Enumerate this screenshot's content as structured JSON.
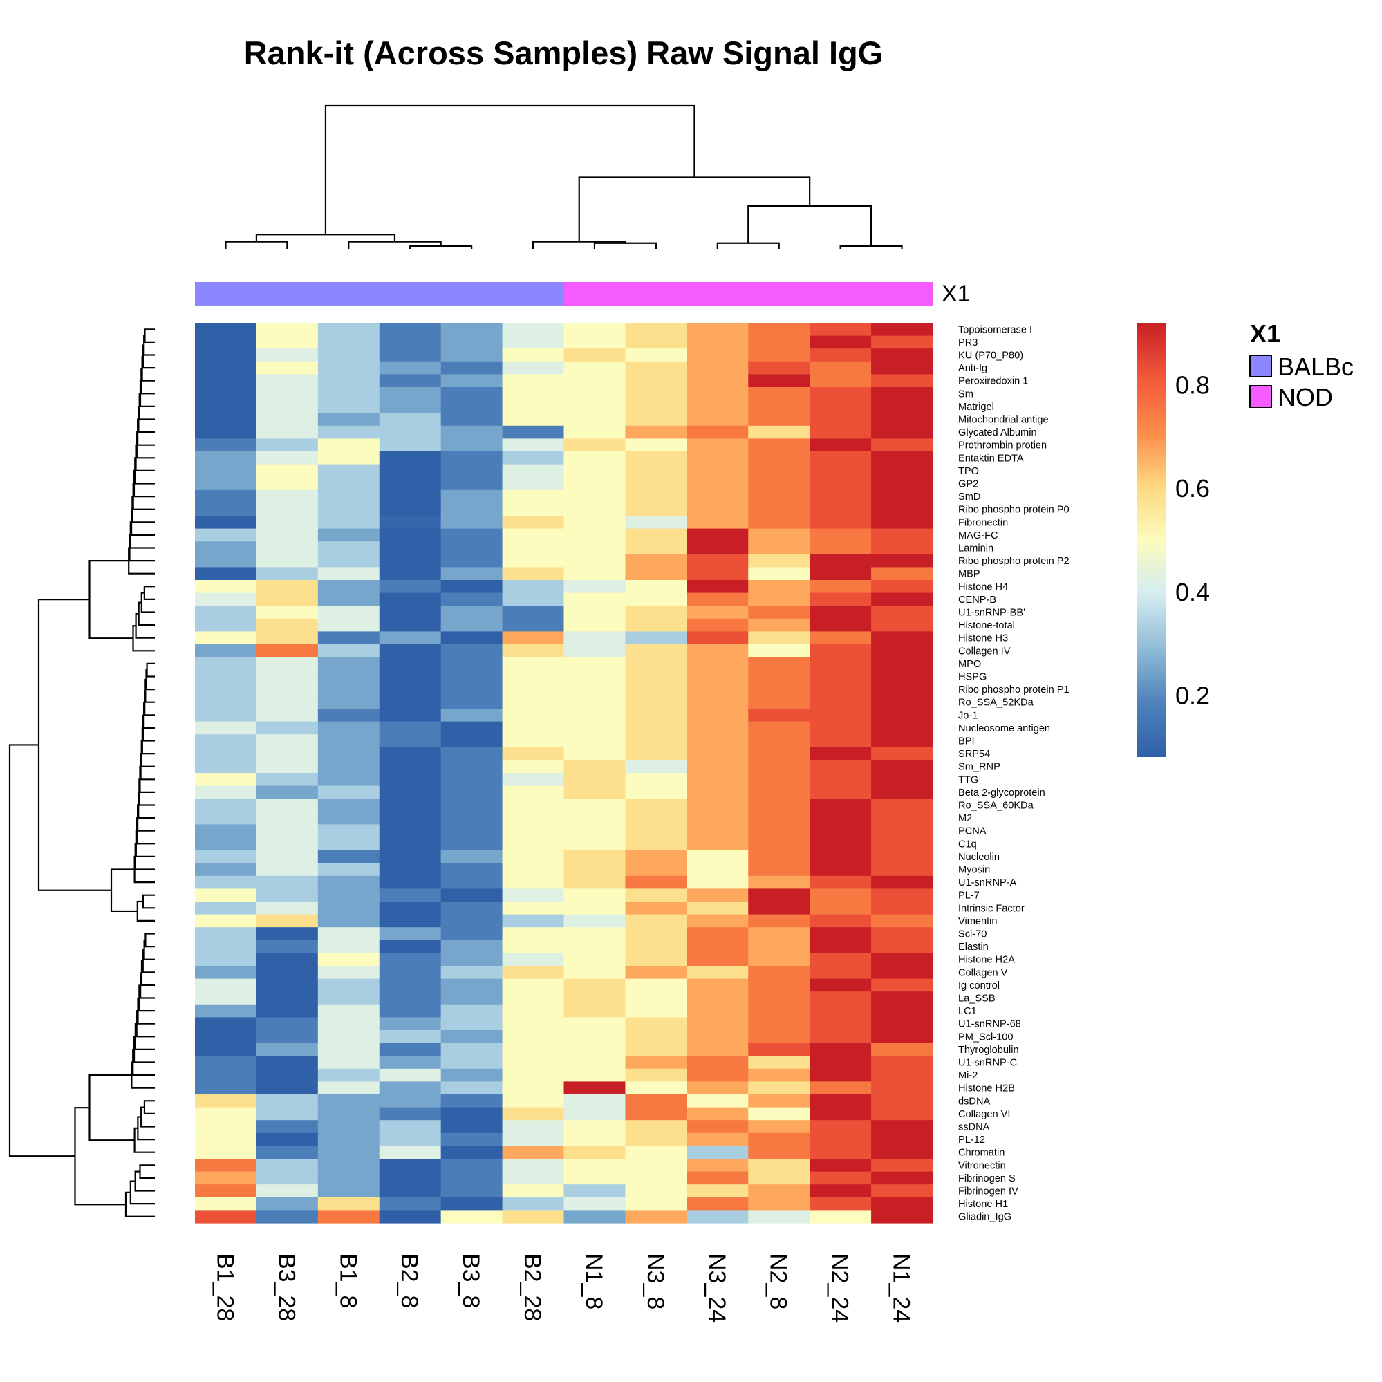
{
  "chart_data": {
    "type": "heatmap",
    "title": "Rank-it (Across Samples) Raw Signal IgG",
    "columns": [
      "B1_28",
      "B3_28",
      "B1_8",
      "B2_8",
      "B3_8",
      "B2_28",
      "N1_8",
      "N3_8",
      "N3_24",
      "N2_8",
      "N2_24",
      "N1_24"
    ],
    "rows": [
      "Topoisomerase I",
      "PR3",
      "KU (P70_P80)",
      "Anti-Ig",
      "Peroxiredoxin 1",
      "Sm",
      "Matrigel",
      "Mitochondrial antige",
      "Glycated Albumin",
      "Prothrombin protien",
      "Entaktin EDTA",
      "TPO",
      "GP2",
      "SmD",
      "Ribo phospho protein P0",
      "Fibronectin",
      "MAG-FC",
      "Laminin",
      "Ribo phospho protein P2",
      "MBP",
      "Histone H4",
      "CENP-B",
      "U1-snRNP-BB'",
      "Histone-total",
      "Histone H3",
      "Collagen IV",
      "MPO",
      "HSPG",
      "Ribo phospho protein P1",
      "Ro_SSA_52KDa",
      "Jo-1",
      "Nucleosome antigen",
      "BPI",
      "SRP54",
      "Sm_RNP",
      "TTG",
      "Beta 2-glycoprotein",
      "Ro_SSA_60KDa",
      "M2",
      "PCNA",
      "C1q",
      "Nucleolin",
      "Myosin",
      "U1-snRNP-A",
      "PL-7",
      "Intrinsic Factor",
      "Vimentin",
      "Scl-70",
      "Elastin",
      "Histone H2A",
      "Collagen V",
      "Ig control",
      "La_SSB",
      "LC1",
      "U1-snRNP-68",
      "PM_Scl-100",
      "Thyroglobulin",
      "U1-snRNP-C",
      "Mi-2",
      "Histone H2B",
      "dsDNA",
      "Collagen VI",
      "ssDNA",
      "PL-12",
      "Chromatin",
      "Vitronectin",
      "Fibrinogen S",
      "Fibrinogen IV",
      "Histone H1",
      "Gliadin_IgG"
    ],
    "values": [
      [
        0.08,
        0.5,
        0.33,
        0.17,
        0.25,
        0.42,
        0.5,
        0.58,
        0.67,
        0.75,
        0.83,
        0.92
      ],
      [
        0.08,
        0.5,
        0.33,
        0.17,
        0.25,
        0.42,
        0.5,
        0.58,
        0.67,
        0.75,
        0.92,
        0.83
      ],
      [
        0.08,
        0.42,
        0.33,
        0.17,
        0.25,
        0.5,
        0.58,
        0.5,
        0.67,
        0.75,
        0.83,
        0.92
      ],
      [
        0.08,
        0.5,
        0.33,
        0.25,
        0.17,
        0.42,
        0.5,
        0.58,
        0.67,
        0.83,
        0.75,
        0.92
      ],
      [
        0.08,
        0.42,
        0.33,
        0.17,
        0.25,
        0.5,
        0.5,
        0.58,
        0.67,
        0.92,
        0.75,
        0.83
      ],
      [
        0.08,
        0.42,
        0.33,
        0.25,
        0.17,
        0.5,
        0.5,
        0.58,
        0.67,
        0.75,
        0.83,
        0.92
      ],
      [
        0.08,
        0.42,
        0.33,
        0.25,
        0.17,
        0.5,
        0.5,
        0.58,
        0.67,
        0.75,
        0.83,
        0.92
      ],
      [
        0.08,
        0.42,
        0.25,
        0.33,
        0.17,
        0.5,
        0.5,
        0.58,
        0.67,
        0.75,
        0.83,
        0.92
      ],
      [
        0.08,
        0.42,
        0.33,
        0.33,
        0.25,
        0.17,
        0.5,
        0.67,
        0.75,
        0.58,
        0.83,
        0.92
      ],
      [
        0.17,
        0.33,
        0.5,
        0.33,
        0.25,
        0.42,
        0.58,
        0.5,
        0.67,
        0.75,
        0.92,
        0.83
      ],
      [
        0.25,
        0.42,
        0.5,
        0.08,
        0.17,
        0.33,
        0.5,
        0.58,
        0.67,
        0.75,
        0.83,
        0.92
      ],
      [
        0.25,
        0.5,
        0.33,
        0.08,
        0.17,
        0.42,
        0.5,
        0.58,
        0.67,
        0.75,
        0.83,
        0.92
      ],
      [
        0.25,
        0.5,
        0.33,
        0.08,
        0.17,
        0.42,
        0.5,
        0.58,
        0.67,
        0.75,
        0.83,
        0.92
      ],
      [
        0.17,
        0.42,
        0.33,
        0.08,
        0.25,
        0.5,
        0.5,
        0.58,
        0.67,
        0.75,
        0.83,
        0.92
      ],
      [
        0.17,
        0.42,
        0.33,
        0.08,
        0.25,
        0.5,
        0.5,
        0.58,
        0.67,
        0.75,
        0.83,
        0.92
      ],
      [
        0.08,
        0.42,
        0.33,
        0.1,
        0.25,
        0.58,
        0.5,
        0.42,
        0.67,
        0.75,
        0.83,
        0.92
      ],
      [
        0.33,
        0.42,
        0.25,
        0.08,
        0.17,
        0.5,
        0.5,
        0.58,
        0.92,
        0.67,
        0.75,
        0.83
      ],
      [
        0.25,
        0.42,
        0.33,
        0.08,
        0.17,
        0.5,
        0.5,
        0.58,
        0.92,
        0.67,
        0.75,
        0.83
      ],
      [
        0.25,
        0.42,
        0.33,
        0.08,
        0.17,
        0.5,
        0.5,
        0.67,
        0.83,
        0.58,
        0.92,
        0.92
      ],
      [
        0.08,
        0.33,
        0.42,
        0.08,
        0.25,
        0.58,
        0.5,
        0.67,
        0.83,
        0.5,
        0.92,
        0.75
      ],
      [
        0.5,
        0.58,
        0.25,
        0.17,
        0.08,
        0.33,
        0.42,
        0.5,
        0.92,
        0.67,
        0.75,
        0.83
      ],
      [
        0.42,
        0.58,
        0.25,
        0.08,
        0.17,
        0.33,
        0.5,
        0.5,
        0.75,
        0.67,
        0.83,
        0.92
      ],
      [
        0.33,
        0.5,
        0.42,
        0.08,
        0.25,
        0.17,
        0.5,
        0.58,
        0.67,
        0.75,
        0.92,
        0.83
      ],
      [
        0.33,
        0.58,
        0.42,
        0.08,
        0.25,
        0.17,
        0.5,
        0.58,
        0.75,
        0.67,
        0.92,
        0.83
      ],
      [
        0.5,
        0.58,
        0.17,
        0.25,
        0.08,
        0.67,
        0.42,
        0.33,
        0.83,
        0.58,
        0.75,
        0.92
      ],
      [
        0.25,
        0.75,
        0.33,
        0.08,
        0.17,
        0.58,
        0.42,
        0.58,
        0.67,
        0.5,
        0.83,
        0.92
      ],
      [
        0.33,
        0.42,
        0.25,
        0.08,
        0.17,
        0.5,
        0.5,
        0.58,
        0.67,
        0.75,
        0.83,
        0.92
      ],
      [
        0.33,
        0.42,
        0.25,
        0.08,
        0.17,
        0.5,
        0.5,
        0.58,
        0.67,
        0.75,
        0.83,
        0.92
      ],
      [
        0.33,
        0.42,
        0.25,
        0.08,
        0.17,
        0.5,
        0.5,
        0.58,
        0.67,
        0.75,
        0.83,
        0.92
      ],
      [
        0.33,
        0.42,
        0.25,
        0.08,
        0.17,
        0.5,
        0.5,
        0.58,
        0.67,
        0.75,
        0.83,
        0.92
      ],
      [
        0.33,
        0.42,
        0.17,
        0.08,
        0.25,
        0.5,
        0.5,
        0.58,
        0.67,
        0.83,
        0.83,
        0.92
      ],
      [
        0.42,
        0.33,
        0.25,
        0.17,
        0.08,
        0.5,
        0.5,
        0.58,
        0.67,
        0.75,
        0.83,
        0.92
      ],
      [
        0.33,
        0.42,
        0.25,
        0.17,
        0.08,
        0.5,
        0.5,
        0.58,
        0.67,
        0.75,
        0.83,
        0.92
      ],
      [
        0.33,
        0.42,
        0.25,
        0.08,
        0.17,
        0.58,
        0.5,
        0.58,
        0.67,
        0.75,
        0.92,
        0.83
      ],
      [
        0.33,
        0.42,
        0.25,
        0.08,
        0.17,
        0.5,
        0.58,
        0.42,
        0.67,
        0.75,
        0.83,
        0.92
      ],
      [
        0.5,
        0.33,
        0.25,
        0.08,
        0.17,
        0.42,
        0.58,
        0.5,
        0.67,
        0.75,
        0.83,
        0.92
      ],
      [
        0.42,
        0.25,
        0.33,
        0.08,
        0.17,
        0.5,
        0.58,
        0.5,
        0.67,
        0.75,
        0.83,
        0.92
      ],
      [
        0.33,
        0.42,
        0.25,
        0.08,
        0.17,
        0.5,
        0.5,
        0.58,
        0.67,
        0.75,
        0.92,
        0.83
      ],
      [
        0.33,
        0.42,
        0.25,
        0.08,
        0.17,
        0.5,
        0.5,
        0.58,
        0.67,
        0.75,
        0.92,
        0.83
      ],
      [
        0.25,
        0.42,
        0.33,
        0.08,
        0.17,
        0.5,
        0.5,
        0.58,
        0.67,
        0.75,
        0.92,
        0.83
      ],
      [
        0.25,
        0.42,
        0.33,
        0.08,
        0.17,
        0.5,
        0.5,
        0.58,
        0.67,
        0.75,
        0.92,
        0.83
      ],
      [
        0.33,
        0.42,
        0.17,
        0.08,
        0.25,
        0.5,
        0.58,
        0.67,
        0.5,
        0.75,
        0.92,
        0.83
      ],
      [
        0.25,
        0.42,
        0.33,
        0.08,
        0.17,
        0.5,
        0.58,
        0.67,
        0.5,
        0.75,
        0.92,
        0.83
      ],
      [
        0.33,
        0.33,
        0.25,
        0.08,
        0.17,
        0.5,
        0.58,
        0.75,
        0.5,
        0.67,
        0.83,
        0.92
      ],
      [
        0.5,
        0.33,
        0.25,
        0.17,
        0.08,
        0.42,
        0.5,
        0.58,
        0.67,
        0.92,
        0.75,
        0.83
      ],
      [
        0.33,
        0.42,
        0.25,
        0.08,
        0.17,
        0.5,
        0.5,
        0.67,
        0.58,
        0.92,
        0.75,
        0.83
      ],
      [
        0.5,
        0.58,
        0.25,
        0.08,
        0.17,
        0.33,
        0.42,
        0.58,
        0.67,
        0.75,
        0.83,
        0.75
      ],
      [
        0.33,
        0.08,
        0.42,
        0.25,
        0.17,
        0.5,
        0.5,
        0.58,
        0.75,
        0.67,
        0.92,
        0.83
      ],
      [
        0.33,
        0.17,
        0.42,
        0.08,
        0.25,
        0.5,
        0.5,
        0.58,
        0.75,
        0.67,
        0.92,
        0.83
      ],
      [
        0.33,
        0.08,
        0.5,
        0.17,
        0.25,
        0.42,
        0.5,
        0.58,
        0.75,
        0.67,
        0.83,
        0.92
      ],
      [
        0.25,
        0.08,
        0.42,
        0.17,
        0.33,
        0.58,
        0.5,
        0.67,
        0.58,
        0.75,
        0.83,
        0.92
      ],
      [
        0.42,
        0.08,
        0.33,
        0.17,
        0.25,
        0.5,
        0.58,
        0.5,
        0.67,
        0.75,
        0.92,
        0.83
      ],
      [
        0.42,
        0.08,
        0.33,
        0.17,
        0.25,
        0.5,
        0.58,
        0.5,
        0.67,
        0.75,
        0.83,
        0.92
      ],
      [
        0.25,
        0.08,
        0.42,
        0.17,
        0.33,
        0.5,
        0.58,
        0.5,
        0.67,
        0.75,
        0.83,
        0.92
      ],
      [
        0.08,
        0.17,
        0.42,
        0.25,
        0.33,
        0.5,
        0.5,
        0.58,
        0.67,
        0.75,
        0.83,
        0.92
      ],
      [
        0.08,
        0.17,
        0.42,
        0.33,
        0.25,
        0.5,
        0.5,
        0.58,
        0.67,
        0.75,
        0.83,
        0.92
      ],
      [
        0.08,
        0.25,
        0.42,
        0.17,
        0.33,
        0.5,
        0.5,
        0.58,
        0.67,
        0.83,
        0.92,
        0.75
      ],
      [
        0.17,
        0.08,
        0.42,
        0.25,
        0.33,
        0.5,
        0.5,
        0.67,
        0.75,
        0.58,
        0.92,
        0.83
      ],
      [
        0.17,
        0.08,
        0.33,
        0.42,
        0.25,
        0.5,
        0.5,
        0.58,
        0.75,
        0.67,
        0.92,
        0.83
      ],
      [
        0.17,
        0.08,
        0.42,
        0.25,
        0.33,
        0.5,
        0.92,
        0.5,
        0.67,
        0.58,
        0.75,
        0.83
      ],
      [
        0.58,
        0.33,
        0.25,
        0.25,
        0.17,
        0.5,
        0.42,
        0.75,
        0.5,
        0.67,
        0.92,
        0.83
      ],
      [
        0.5,
        0.33,
        0.25,
        0.17,
        0.08,
        0.58,
        0.42,
        0.75,
        0.67,
        0.5,
        0.92,
        0.83
      ],
      [
        0.5,
        0.17,
        0.25,
        0.33,
        0.08,
        0.42,
        0.5,
        0.58,
        0.75,
        0.67,
        0.83,
        0.92
      ],
      [
        0.5,
        0.08,
        0.25,
        0.33,
        0.17,
        0.42,
        0.5,
        0.58,
        0.67,
        0.75,
        0.83,
        0.92
      ],
      [
        0.5,
        0.17,
        0.25,
        0.42,
        0.08,
        0.67,
        0.58,
        0.5,
        0.33,
        0.75,
        0.83,
        0.92
      ],
      [
        0.75,
        0.33,
        0.25,
        0.08,
        0.17,
        0.42,
        0.5,
        0.5,
        0.67,
        0.58,
        0.92,
        0.83
      ],
      [
        0.67,
        0.33,
        0.25,
        0.08,
        0.17,
        0.42,
        0.5,
        0.5,
        0.75,
        0.58,
        0.83,
        0.92
      ],
      [
        0.75,
        0.42,
        0.25,
        0.08,
        0.17,
        0.5,
        0.33,
        0.5,
        0.58,
        0.67,
        0.92,
        0.83
      ],
      [
        0.5,
        0.25,
        0.58,
        0.17,
        0.08,
        0.33,
        0.42,
        0.5,
        0.75,
        0.67,
        0.83,
        0.92
      ],
      [
        0.83,
        0.17,
        0.75,
        0.08,
        0.5,
        0.58,
        0.25,
        0.67,
        0.33,
        0.42,
        0.5,
        0.92
      ]
    ],
    "color_scale": {
      "min": 0.08,
      "max": 0.92,
      "stops": [
        "#3060a8",
        "#4f82bb",
        "#90bcd8",
        "#d5ecf0",
        "#fbfcbe",
        "#fed77f",
        "#fc8b47",
        "#f2593a",
        "#c81f26"
      ],
      "ticks": [
        0.2,
        0.4,
        0.6,
        0.8
      ],
      "tick_labels": [
        "0.2",
        "0.4",
        "0.6",
        "0.8"
      ]
    },
    "annotation": {
      "label": "X1",
      "values": [
        "BALBc",
        "BALBc",
        "BALBc",
        "BALBc",
        "BALBc",
        "BALBc",
        "NOD",
        "NOD",
        "NOD",
        "NOD",
        "NOD",
        "NOD"
      ],
      "legend_title": "X1",
      "levels": [
        {
          "name": "BALBc",
          "color": "#8c87ff"
        },
        {
          "name": "NOD",
          "color": "#f55cff"
        }
      ]
    },
    "column_dendrogram": true,
    "row_dendrogram": true,
    "legend_placement": "right"
  }
}
